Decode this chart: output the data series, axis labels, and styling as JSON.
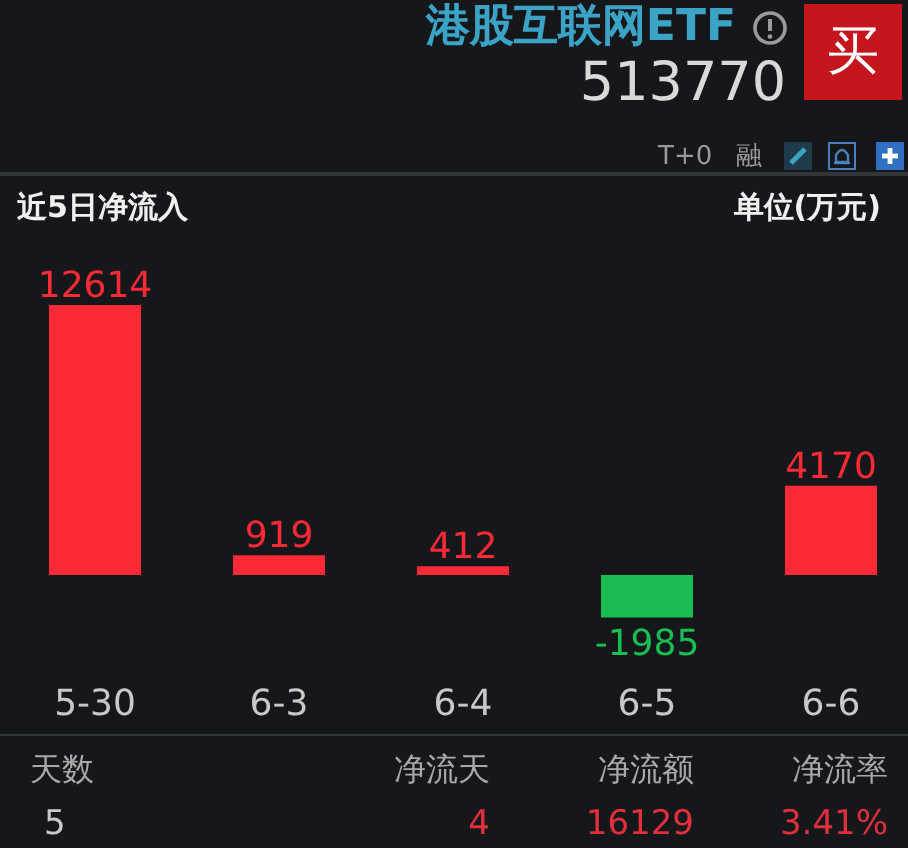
{
  "chart_data": {
    "type": "bar",
    "title": "近5日净流入",
    "ylabel": "单位(万元)",
    "categories": [
      "5-30",
      "6-3",
      "6-4",
      "6-5",
      "6-6"
    ],
    "values": [
      12614,
      919,
      412,
      -1985,
      4170
    ],
    "colors": [
      "#fc2a37",
      "#fc2a37",
      "#fc2a37",
      "#19bd52",
      "#fc2a37"
    ],
    "data_labels": true,
    "annotations": [
      "港股互联网ETF",
      "513770",
      "买",
      "T+0",
      "融",
      "天数",
      "5",
      "净流天",
      "4",
      "净流额",
      "16129",
      "净流率",
      "3.41%"
    ]
  }
}
